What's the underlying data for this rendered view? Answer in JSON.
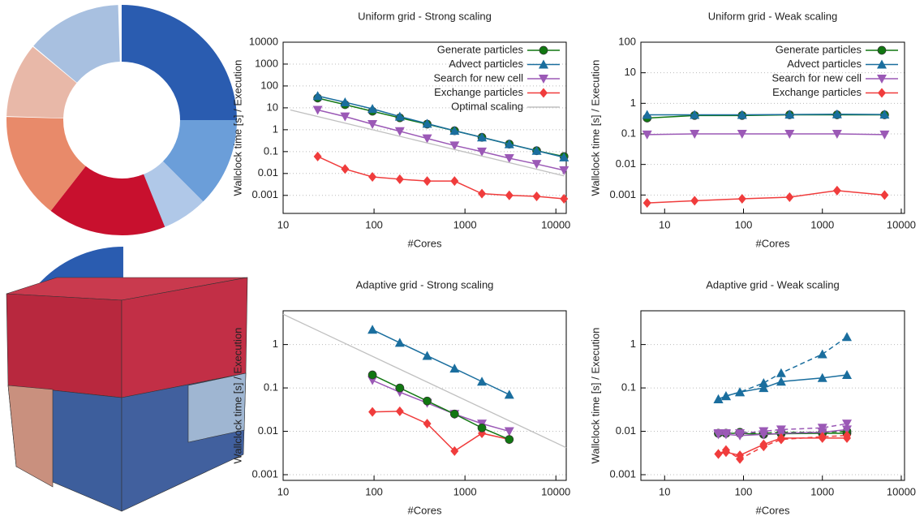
{
  "chart_data": [
    {
      "type": "line",
      "title": "Uniform grid - Strong scaling",
      "xlabel": "#Cores",
      "ylabel": "Wallclock time [s] / Execution",
      "xscale": "log",
      "yscale": "log",
      "xlim": [
        10,
        13000
      ],
      "ylim": [
        0.00015,
        10000
      ],
      "xticks": [
        10,
        100,
        1000,
        10000
      ],
      "yticks": [
        0.001,
        0.01,
        0.1,
        1,
        10,
        100,
        1000,
        10000
      ],
      "grid": true,
      "legend": "top-right",
      "series": [
        {
          "name": "Generate particles",
          "color": "#117711",
          "marker": "circle",
          "x": [
            24,
            48,
            96,
            192,
            384,
            768,
            1536,
            3072,
            6144,
            12288
          ],
          "values": [
            28,
            14,
            7,
            3.5,
            1.8,
            0.9,
            0.45,
            0.22,
            0.11,
            0.06
          ]
        },
        {
          "name": "Advect particles",
          "color": "#1a6e9e",
          "marker": "triangle-up",
          "x": [
            24,
            48,
            96,
            192,
            384,
            768,
            1536,
            3072,
            6144,
            12288
          ],
          "values": [
            35,
            18,
            9,
            4,
            1.9,
            0.9,
            0.45,
            0.22,
            0.11,
            0.055
          ]
        },
        {
          "name": "Search for new cell",
          "color": "#9b59b6",
          "marker": "triangle-down",
          "x": [
            24,
            48,
            96,
            192,
            384,
            768,
            1536,
            3072,
            6144,
            12288
          ],
          "values": [
            8,
            4,
            1.8,
            0.85,
            0.4,
            0.19,
            0.1,
            0.05,
            0.027,
            0.014
          ]
        },
        {
          "name": "Exchange particles",
          "color": "#f03c3c",
          "marker": "diamond",
          "x": [
            24,
            48,
            96,
            192,
            384,
            768,
            1536,
            3072,
            6144,
            12288
          ],
          "values": [
            0.06,
            0.016,
            0.007,
            0.0055,
            0.0045,
            0.0045,
            0.0012,
            0.001,
            0.0009,
            0.0007
          ]
        },
        {
          "name": "Optimal scaling",
          "color": "#c0c0c0",
          "x": [
            12,
            12288
          ],
          "values": [
            8,
            0.0078
          ]
        }
      ]
    },
    {
      "type": "line",
      "title": "Uniform grid - Weak scaling",
      "xlabel": "#Cores",
      "ylabel": "Wallclock time [s] / Execution",
      "xscale": "log",
      "yscale": "log",
      "xlim": [
        5,
        11000
      ],
      "ylim": [
        0.00025,
        100
      ],
      "xticks": [
        10,
        100,
        1000,
        10000
      ],
      "yticks": [
        0.001,
        0.01,
        0.1,
        1,
        10,
        100
      ],
      "grid": true,
      "legend": "top-right",
      "series": [
        {
          "name": "Generate particles",
          "color": "#117711",
          "marker": "circle",
          "x": [
            6,
            24,
            96,
            384,
            1536,
            6144
          ],
          "values": [
            0.33,
            0.4,
            0.4,
            0.42,
            0.42,
            0.42
          ]
        },
        {
          "name": "Advect particles",
          "color": "#1a6e9e",
          "marker": "triangle-up",
          "x": [
            6,
            24,
            96,
            384,
            1536,
            6144
          ],
          "values": [
            0.42,
            0.42,
            0.42,
            0.43,
            0.44,
            0.43
          ]
        },
        {
          "name": "Search for new cell",
          "color": "#9b59b6",
          "marker": "triangle-down",
          "x": [
            6,
            24,
            96,
            384,
            1536,
            6144
          ],
          "values": [
            0.095,
            0.1,
            0.1,
            0.1,
            0.1,
            0.095
          ]
        },
        {
          "name": "Exchange particles",
          "color": "#f03c3c",
          "marker": "diamond",
          "x": [
            6,
            24,
            96,
            384,
            1536,
            6144
          ],
          "values": [
            0.00055,
            0.00065,
            0.00075,
            0.00085,
            0.0014,
            0.001
          ]
        }
      ]
    },
    {
      "type": "line",
      "title": "Adaptive grid - Strong scaling",
      "xlabel": "#Cores",
      "ylabel": "Wallclock time [s] / Execution",
      "xscale": "log",
      "yscale": "log",
      "xlim": [
        10,
        13000
      ],
      "ylim": [
        0.00074,
        6
      ],
      "xticks": [
        10,
        100,
        1000,
        10000
      ],
      "yticks": [
        0.001,
        0.01,
        0.1,
        1
      ],
      "grid": true,
      "series": [
        {
          "color": "#c0c0c0",
          "x": [
            10,
            13000
          ],
          "values": [
            5,
            0.0042
          ]
        },
        {
          "color": "#1a6e9e",
          "marker": "triangle-up",
          "x": [
            96,
            192,
            384,
            768,
            1536,
            3072
          ],
          "values": [
            2.2,
            1.1,
            0.55,
            0.28,
            0.14,
            0.07
          ]
        },
        {
          "color": "#9b59b6",
          "marker": "triangle-down",
          "x": [
            96,
            192,
            384,
            768,
            1536,
            3072
          ],
          "values": [
            0.15,
            0.08,
            0.045,
            0.025,
            0.015,
            0.01
          ]
        },
        {
          "color": "#f03c3c",
          "marker": "diamond",
          "x": [
            96,
            192,
            384,
            768,
            1536,
            3072
          ],
          "values": [
            0.028,
            0.029,
            0.015,
            0.0035,
            0.009,
            0.0065
          ]
        },
        {
          "color": "#117711",
          "marker": "circle",
          "x": [
            96,
            192,
            384,
            768,
            1536,
            3072
          ],
          "values": [
            0.2,
            0.1,
            0.05,
            0.025,
            0.012,
            0.0065
          ]
        }
      ]
    },
    {
      "type": "line",
      "title": "Adaptive grid - Weak scaling",
      "xlabel": "#Cores",
      "ylabel": "Wallclock time [s] / Execution",
      "xscale": "log",
      "yscale": "log",
      "xlim": [
        5,
        11000
      ],
      "ylim": [
        0.00074,
        6
      ],
      "xticks": [
        10,
        100,
        1000,
        10000
      ],
      "yticks": [
        0.001,
        0.01,
        0.1,
        1
      ],
      "grid": true,
      "series": [
        {
          "color": "#117711",
          "marker": "circle",
          "x": [
            48,
            60,
            90,
            180,
            300,
            1000,
            2048
          ],
          "values": [
            0.009,
            0.009,
            0.009,
            0.0085,
            0.0088,
            0.009,
            0.009
          ]
        },
        {
          "color": "#117711",
          "marker": "circle",
          "dash": true,
          "x": [
            48,
            60,
            90,
            180,
            300,
            1000,
            2048
          ],
          "values": [
            0.009,
            0.009,
            0.0095,
            0.009,
            0.0095,
            0.0095,
            0.01
          ]
        },
        {
          "color": "#1a6e9e",
          "marker": "triangle-up",
          "x": [
            48,
            60,
            90,
            180,
            300,
            1000,
            2048
          ],
          "values": [
            0.055,
            0.065,
            0.08,
            0.1,
            0.14,
            0.17,
            0.2
          ]
        },
        {
          "color": "#1a6e9e",
          "marker": "triangle-up",
          "dash": true,
          "x": [
            48,
            60,
            90,
            180,
            300,
            1000,
            2048
          ],
          "values": [
            0.055,
            0.065,
            0.08,
            0.13,
            0.22,
            0.6,
            1.5
          ]
        },
        {
          "color": "#9b59b6",
          "marker": "triangle-down",
          "x": [
            48,
            60,
            90,
            180,
            300,
            1000,
            2048
          ],
          "values": [
            0.0085,
            0.0085,
            0.008,
            0.0085,
            0.009,
            0.0095,
            0.011
          ]
        },
        {
          "color": "#9b59b6",
          "marker": "triangle-down",
          "dash": true,
          "x": [
            48,
            60,
            90,
            180,
            300,
            1000,
            2048
          ],
          "values": [
            0.009,
            0.009,
            0.009,
            0.01,
            0.011,
            0.012,
            0.015
          ]
        },
        {
          "color": "#f03c3c",
          "marker": "diamond",
          "x": [
            48,
            60,
            90,
            180,
            300,
            1000,
            2048
          ],
          "values": [
            0.003,
            0.0033,
            0.0028,
            0.005,
            0.007,
            0.007,
            0.007
          ]
        },
        {
          "color": "#f03c3c",
          "marker": "diamond",
          "dash": true,
          "x": [
            48,
            60,
            90,
            180,
            300,
            1000,
            2048
          ],
          "values": [
            0.003,
            0.0037,
            0.0023,
            0.0045,
            0.0065,
            0.0075,
            0.008
          ]
        }
      ]
    }
  ]
}
